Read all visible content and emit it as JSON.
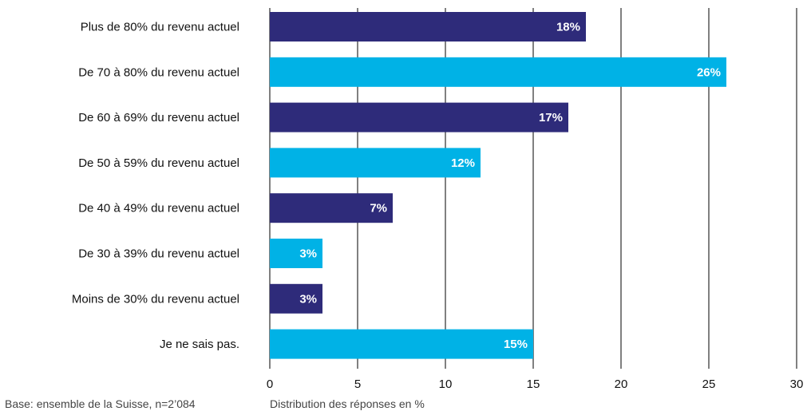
{
  "chart_data": {
    "type": "bar",
    "orientation": "horizontal",
    "categories": [
      "Plus de 80% du revenu actuel",
      "De 70 à 80% du revenu actuel",
      "De 60 à 69% du revenu actuel",
      "De 50 à 59% du revenu actuel",
      "De 40 à 49% du revenu actuel",
      "De 30 à 39% du revenu actuel",
      "Moins de 30% du revenu actuel",
      "Je ne sais pas."
    ],
    "values": [
      18,
      26,
      17,
      12,
      7,
      3,
      3,
      15
    ],
    "value_labels": [
      "18%",
      "26%",
      "17%",
      "12%",
      "7%",
      "3%",
      "3%",
      "15%"
    ],
    "bar_colors": [
      "#2e2b7a",
      "#00b2e6",
      "#2e2b7a",
      "#00b2e6",
      "#2e2b7a",
      "#00b2e6",
      "#2e2b7a",
      "#00b2e6"
    ],
    "xlim": [
      0,
      30
    ],
    "xticks": [
      0,
      5,
      10,
      15,
      20,
      25,
      30
    ],
    "xtick_labels": [
      "0",
      "5",
      "10",
      "15",
      "20",
      "25",
      "30"
    ],
    "grid": "vertical",
    "legend": "none"
  },
  "footnotes": {
    "base": "Base: ensemble de la Suisse, n=2’084",
    "axis_caption": "Distribution des réponses en %"
  },
  "colors": {
    "gridline": "#000000",
    "text": "#111111"
  }
}
